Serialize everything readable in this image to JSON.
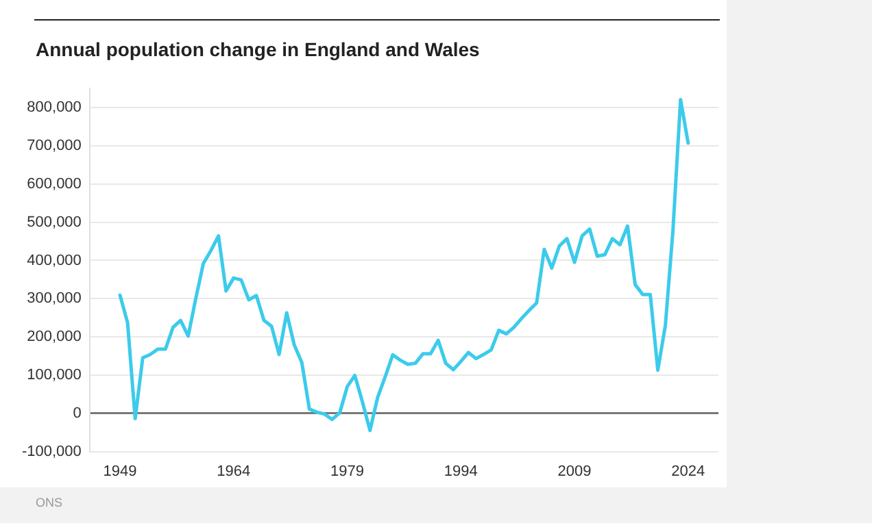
{
  "chart_data": {
    "type": "line",
    "title": "Annual population change in England and Wales",
    "annotations": [
      "ONS"
    ],
    "x": [
      1949,
      1950,
      1951,
      1952,
      1953,
      1954,
      1955,
      1956,
      1957,
      1958,
      1959,
      1960,
      1961,
      1962,
      1963,
      1964,
      1965,
      1966,
      1967,
      1968,
      1969,
      1970,
      1971,
      1972,
      1973,
      1974,
      1975,
      1976,
      1977,
      1978,
      1979,
      1980,
      1981,
      1982,
      1983,
      1984,
      1985,
      1986,
      1987,
      1988,
      1989,
      1990,
      1991,
      1992,
      1993,
      1994,
      1995,
      1996,
      1997,
      1998,
      1999,
      2000,
      2001,
      2002,
      2003,
      2004,
      2005,
      2006,
      2007,
      2008,
      2009,
      2010,
      2011,
      2012,
      2013,
      2014,
      2015,
      2016,
      2017,
      2018,
      2019,
      2020,
      2021,
      2022,
      2023,
      2024
    ],
    "series": [
      {
        "color": "#3ccbeb",
        "values": [
          309000,
          237000,
          -14000,
          145000,
          154000,
          168000,
          168000,
          225000,
          243000,
          202000,
          300000,
          392000,
          426000,
          464000,
          320000,
          354000,
          349000,
          297000,
          308000,
          243000,
          228000,
          154000,
          263000,
          179000,
          133000,
          11000,
          3000,
          -2000,
          -16000,
          1000,
          70000,
          99000,
          30000,
          -45000,
          41000,
          95000,
          153000,
          139000,
          128000,
          131000,
          156000,
          156000,
          191000,
          131000,
          114000,
          136000,
          159000,
          143000,
          154000,
          166000,
          217000,
          208000,
          225000,
          248000,
          269000,
          289000,
          429000,
          380000,
          438000,
          457000,
          395000,
          464000,
          482000,
          411000,
          415000,
          457000,
          441000,
          490000,
          337000,
          311000,
          311000,
          113000,
          231000,
          480000,
          821000,
          707000
        ]
      }
    ],
    "xlim": [
      1945,
      2028
    ],
    "xticks": [
      1949,
      1964,
      1979,
      1994,
      2009,
      2024
    ],
    "ylim": [
      -100000,
      850000
    ],
    "yticks": [
      {
        "value": -100000,
        "label": "-100,000"
      },
      {
        "value": 0,
        "label": "0"
      },
      {
        "value": 100000,
        "label": "100,000"
      },
      {
        "value": 200000,
        "label": "200,000"
      },
      {
        "value": 300000,
        "label": "300,000"
      },
      {
        "value": 400000,
        "label": "400,000"
      },
      {
        "value": 500000,
        "label": "500,000"
      },
      {
        "value": 600000,
        "label": "600,000"
      },
      {
        "value": 700000,
        "label": "700,000"
      },
      {
        "value": 800000,
        "label": "800,000"
      }
    ],
    "grid": "y",
    "legend": false,
    "marker": "none",
    "line_style": "solid"
  }
}
